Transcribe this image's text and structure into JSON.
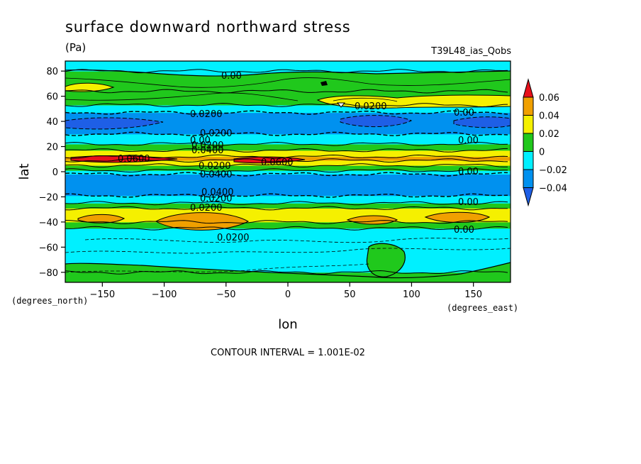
{
  "chart_data": {
    "type": "heatmap",
    "title": "surface downward northward stress",
    "units": "(Pa)",
    "dataset": "T39L48_ias_Qobs",
    "xlabel": "lon",
    "ylabel": "lat",
    "x_units": "(degrees_east)",
    "y_units": "(degrees_north)",
    "xlim": [
      -180,
      180
    ],
    "ylim": [
      -88,
      88
    ],
    "x_ticks": [
      -150,
      -100,
      -50,
      0,
      50,
      100,
      150
    ],
    "y_ticks": [
      -80,
      -60,
      -40,
      -20,
      0,
      20,
      40,
      60,
      80
    ],
    "contour_interval_label": "CONTOUR INTERVAL = 1.001E-02",
    "colorbar": {
      "levels": [
        0.06,
        0.04,
        0.02,
        0,
        -0.02,
        -0.04
      ],
      "level_labels": [
        "0.06",
        "0.04",
        "0.02",
        "0",
        "−0.02",
        "−0.04"
      ],
      "colors": [
        "#e8101a",
        "#f0a000",
        "#f5f000",
        "#20c81c",
        "#00f0ff",
        "#0091ef",
        "#1e5fe6"
      ]
    },
    "bands": [
      {
        "lat_min": -88,
        "lat_max": -80,
        "value": 0.01
      },
      {
        "lat_min": -80,
        "lat_max": -45,
        "value": -0.01
      },
      {
        "lat_min": -45,
        "lat_max": -40,
        "value": 0.01
      },
      {
        "lat_min": -40,
        "lat_max": -29,
        "value": 0.03
      },
      {
        "lat_min": -29,
        "lat_max": -25,
        "value": 0.01
      },
      {
        "lat_min": -25,
        "lat_max": -19,
        "value": -0.01
      },
      {
        "lat_min": -19,
        "lat_max": -2,
        "value": -0.03
      },
      {
        "lat_min": -2,
        "lat_max": 1,
        "value": -0.01
      },
      {
        "lat_min": 1,
        "lat_max": 5,
        "value": 0.01
      },
      {
        "lat_min": 5,
        "lat_max": 9,
        "value": 0.03
      },
      {
        "lat_min": 9,
        "lat_max": 12,
        "value": 0.05
      },
      {
        "lat_min": 12,
        "lat_max": 17,
        "value": 0.03
      },
      {
        "lat_min": 17,
        "lat_max": 22,
        "value": 0.01
      },
      {
        "lat_min": 22,
        "lat_max": 30,
        "value": -0.01
      },
      {
        "lat_min": 30,
        "lat_max": 47,
        "value": -0.03
      },
      {
        "lat_min": 47,
        "lat_max": 53,
        "value": -0.01
      },
      {
        "lat_min": 53,
        "lat_max": 64,
        "value": 0.01
      },
      {
        "lat_min": 64,
        "lat_max": 80,
        "value": 0.01
      },
      {
        "lat_min": 80,
        "lat_max": 88,
        "value": -0.01
      }
    ],
    "contour_labels": [
      "0.00",
      "0.0200",
      "0.0200",
      "0.00",
      "0.0200",
      "0.00",
      "0.00",
      "0.0400",
      "0.0200",
      "0.0600",
      "0.0600",
      "0.00",
      "0.0400",
      "0.0200",
      "0.0400",
      "0.0200",
      "0.00",
      "0.0200",
      "0.00",
      "0.0200"
    ]
  }
}
